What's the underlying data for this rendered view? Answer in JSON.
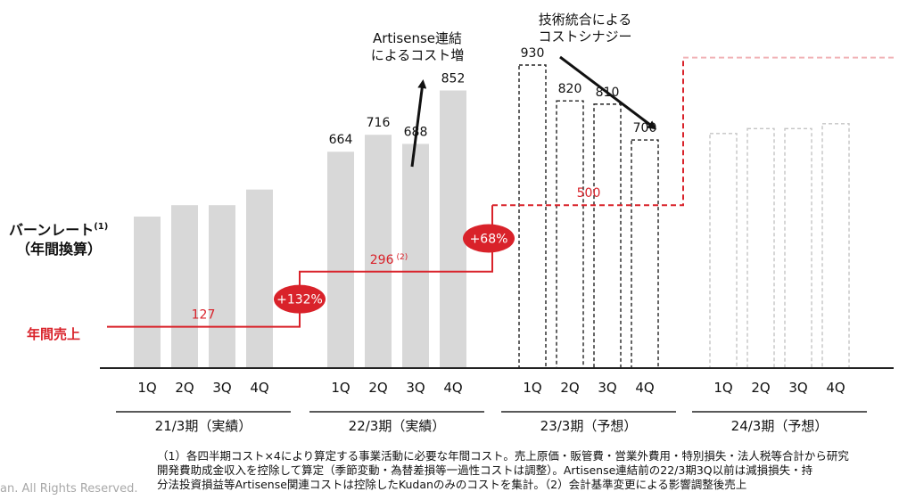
{
  "chart_data": {
    "type": "bar",
    "y_axis_title": "バーンレート",
    "y_axis_title_note": "(1)",
    "y_axis_subtitle": "（年間換算）",
    "periods": [
      {
        "label": "21/3期（実績）",
        "style": "solid"
      },
      {
        "label": "22/3期（実績）",
        "style": "solid"
      },
      {
        "label": "23/3期（予想）",
        "style": "dashed"
      },
      {
        "label": "24/3期（予想）",
        "style": "dashed-light"
      }
    ],
    "quarters": [
      "1Q",
      "2Q",
      "3Q",
      "4Q"
    ],
    "bars": [
      {
        "period": 0,
        "q": "1Q",
        "value": 465
      },
      {
        "period": 0,
        "q": "2Q",
        "value": 500
      },
      {
        "period": 0,
        "q": "3Q",
        "value": 500
      },
      {
        "period": 0,
        "q": "4Q",
        "value": 548
      },
      {
        "period": 1,
        "q": "1Q",
        "value": 664,
        "label": "664"
      },
      {
        "period": 1,
        "q": "2Q",
        "value": 716,
        "label": "716"
      },
      {
        "period": 1,
        "q": "3Q",
        "value": 688,
        "label": "688"
      },
      {
        "period": 1,
        "q": "4Q",
        "value": 852,
        "label": "852"
      },
      {
        "period": 2,
        "q": "1Q",
        "value": 930,
        "label": "930"
      },
      {
        "period": 2,
        "q": "2Q",
        "value": 820,
        "label": "820"
      },
      {
        "period": 2,
        "q": "3Q",
        "value": 810,
        "label": "810"
      },
      {
        "period": 2,
        "q": "4Q",
        "value": 700,
        "label": "700"
      },
      {
        "period": 3,
        "q": "1Q",
        "value": 720
      },
      {
        "period": 3,
        "q": "2Q",
        "value": 735
      },
      {
        "period": 3,
        "q": "3Q",
        "value": 735
      },
      {
        "period": 3,
        "q": "4Q",
        "value": 750
      }
    ],
    "revenue": {
      "label": "年間売上",
      "color": "#d9222a",
      "values": [
        {
          "period": 0,
          "value": 127,
          "label": "127"
        },
        {
          "period": 1,
          "value": 296,
          "label": "296",
          "note": "(2)"
        },
        {
          "period": 2,
          "value": 500,
          "label": "500"
        },
        {
          "period": 3,
          "value": 953
        }
      ],
      "growth": [
        "+132%",
        "+68%"
      ]
    },
    "annotations": [
      {
        "text": [
          "Artisense連結",
          "によるコスト増"
        ]
      },
      {
        "text": [
          "技術統合による",
          "コストシナジー"
        ]
      }
    ],
    "ylim": [
      0,
      1000
    ]
  },
  "footnote": {
    "line1": "（1）各四半期コスト×4により算定する事業活動に必要な年間コスト。売上原価・販管費・営業外費用・特別損失・法人税等合計から研究",
    "line2": "開発費助成金収入を控除して算定（季節変動・為替差損等一過性コストは調整）。Artisense連結前の22/3期3Q以前は減損損失・持",
    "line3": "分法投資損益等Artisense関連コストは控除したKudanのみのコストを集計。（2）会計基準変更による影響調整後売上"
  },
  "copyright": "an. All Rights Reserved."
}
